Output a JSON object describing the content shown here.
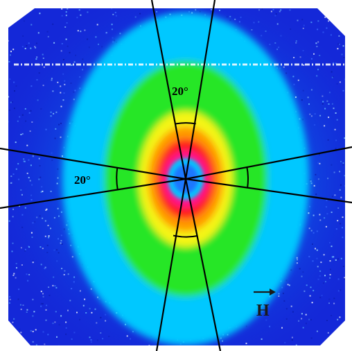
{
  "figure": {
    "angle_label_vertical": "20°",
    "angle_label_horizontal": "20°",
    "field_label": "H",
    "sector_angle_deg": 20
  },
  "colors": {
    "background": "#1428d8",
    "frame": "#ffffff",
    "cyan": "#00c8ff",
    "green": "#28e628",
    "yellow": "#f5f514",
    "orange": "#ff9a00",
    "red": "#ff1a1a",
    "magenta": "#ff1493",
    "center": "#1e78ff",
    "lines": "#000000"
  },
  "icons": {
    "field_vector": "right-arrow-icon"
  }
}
